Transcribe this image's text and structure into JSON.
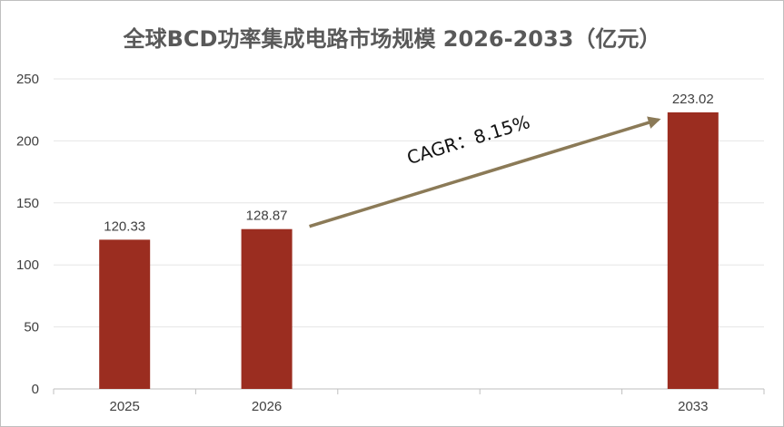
{
  "chart_data": {
    "type": "bar",
    "title": "全球BCD功率集成电路市场规模 2026-2033（亿元）",
    "xlabel": "",
    "ylabel": "",
    "ylim": [
      0,
      250
    ],
    "yticks": [
      0,
      50,
      100,
      150,
      200,
      250
    ],
    "slots": [
      "2025",
      "2026",
      "",
      "",
      "2033"
    ],
    "categories": [
      "2025",
      "2026",
      "2033"
    ],
    "values": [
      120.33,
      128.87,
      223.02
    ],
    "data_labels": [
      "120.33",
      "128.87",
      "223.02"
    ],
    "bar_color": "#9b2d20",
    "grid": true,
    "legend": "none",
    "annotation": {
      "text": "CAGR：8.15%",
      "from_category": "2026",
      "to_category": "2033",
      "arrow_color": "#8b7a57"
    }
  }
}
